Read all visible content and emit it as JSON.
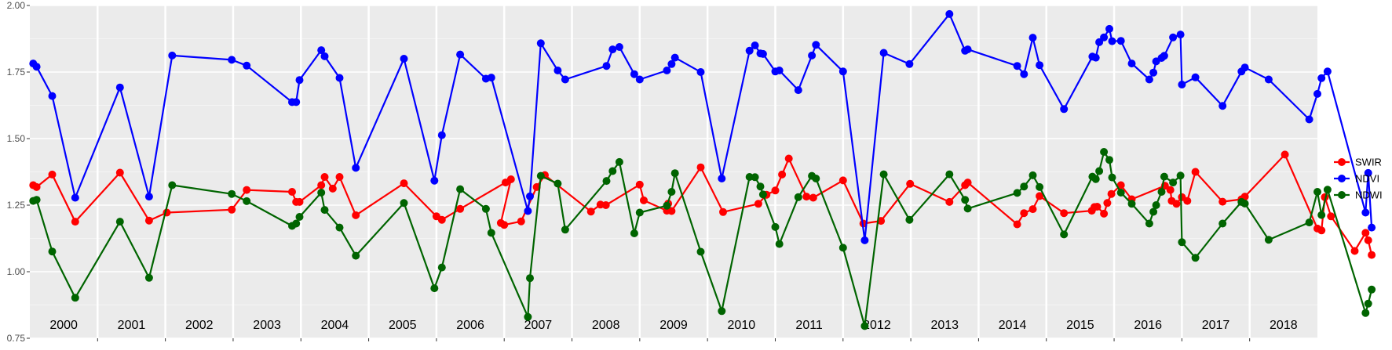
{
  "chart_data": {
    "type": "line",
    "title": "",
    "xlabel": "",
    "ylabel": "",
    "xlim": [
      2000.0,
      2019.0
    ],
    "ylim": [
      0.75,
      2.0
    ],
    "yticks": [
      "0.75",
      "1.00",
      "1.25",
      "1.50",
      "1.75",
      "2.00"
    ],
    "panels": [
      "2000",
      "2001",
      "2002",
      "2003",
      "2004",
      "2005",
      "2006",
      "2007",
      "2008",
      "2009",
      "2010",
      "2011",
      "2012",
      "2013",
      "2014",
      "2015",
      "2016",
      "2017",
      "2018"
    ],
    "grid": true,
    "legend_position": "right",
    "series": [
      {
        "name": "SWIR",
        "color": "#ff0000",
        "points": [
          [
            2000.05,
            1.325
          ],
          [
            2000.1,
            1.318
          ],
          [
            2000.33,
            1.365
          ],
          [
            2000.67,
            1.188
          ],
          [
            2001.33,
            1.372
          ],
          [
            2001.76,
            1.192
          ],
          [
            2002.02,
            1.222
          ],
          [
            2002.98,
            1.233
          ],
          [
            2003.2,
            1.307
          ],
          [
            2003.87,
            1.3
          ],
          [
            2003.93,
            1.262
          ],
          [
            2003.98,
            1.262
          ],
          [
            2004.3,
            1.325
          ],
          [
            2004.35,
            1.356
          ],
          [
            2004.47,
            1.312
          ],
          [
            2004.57,
            1.356
          ],
          [
            2004.81,
            1.212
          ],
          [
            2005.52,
            1.332
          ],
          [
            2006.0,
            1.208
          ],
          [
            2006.08,
            1.195
          ],
          [
            2006.35,
            1.236
          ],
          [
            2007.02,
            1.335
          ],
          [
            2007.1,
            1.347
          ],
          [
            2006.95,
            1.183
          ],
          [
            2007.0,
            1.176
          ],
          [
            2007.25,
            1.189
          ],
          [
            2007.48,
            1.318
          ],
          [
            2007.6,
            1.363
          ],
          [
            2008.28,
            1.226
          ],
          [
            2008.42,
            1.252
          ],
          [
            2008.5,
            1.25
          ],
          [
            2009.0,
            1.327
          ],
          [
            2009.06,
            1.268
          ],
          [
            2009.4,
            1.229
          ],
          [
            2009.42,
            1.256
          ],
          [
            2009.47,
            1.228
          ],
          [
            2009.9,
            1.392
          ],
          [
            2010.23,
            1.224
          ],
          [
            2010.75,
            1.255
          ],
          [
            2010.87,
            1.289
          ],
          [
            2011.0,
            1.305
          ],
          [
            2011.1,
            1.365
          ],
          [
            2011.2,
            1.425
          ],
          [
            2011.46,
            1.282
          ],
          [
            2011.56,
            1.278
          ],
          [
            2012.0,
            1.343
          ],
          [
            2012.3,
            1.181
          ],
          [
            2012.56,
            1.191
          ],
          [
            2012.99,
            1.33
          ],
          [
            2013.57,
            1.262
          ],
          [
            2013.8,
            1.325
          ],
          [
            2013.84,
            1.335
          ],
          [
            2014.57,
            1.178
          ],
          [
            2014.67,
            1.22
          ],
          [
            2014.8,
            1.235
          ],
          [
            2014.9,
            1.284
          ],
          [
            2015.26,
            1.22
          ],
          [
            2015.67,
            1.229
          ],
          [
            2015.71,
            1.243
          ],
          [
            2015.75,
            1.244
          ],
          [
            2015.85,
            1.218
          ],
          [
            2015.9,
            1.258
          ],
          [
            2015.96,
            1.292
          ],
          [
            2016.1,
            1.325
          ],
          [
            2016.26,
            1.272
          ],
          [
            2016.75,
            1.323
          ],
          [
            2016.83,
            1.307
          ],
          [
            2016.85,
            1.266
          ],
          [
            2016.92,
            1.255
          ],
          [
            2017.0,
            1.28
          ],
          [
            2017.08,
            1.266
          ],
          [
            2017.2,
            1.375
          ],
          [
            2017.6,
            1.263
          ],
          [
            2017.88,
            1.272
          ],
          [
            2017.93,
            1.282
          ],
          [
            2018.52,
            1.44
          ],
          [
            2019.0,
            1.162
          ],
          [
            2019.06,
            1.155
          ],
          [
            2019.11,
            1.28
          ],
          [
            2019.2,
            1.208
          ],
          [
            2019.55,
            1.078
          ],
          [
            2019.71,
            1.146
          ],
          [
            2019.75,
            1.118
          ],
          [
            2019.8,
            1.063
          ]
        ]
      },
      {
        "name": "NDVI",
        "color": "#0000ff",
        "points": [
          [
            2000.05,
            1.782
          ],
          [
            2000.1,
            1.77
          ],
          [
            2000.33,
            1.66
          ],
          [
            2000.67,
            1.278
          ],
          [
            2001.33,
            1.692
          ],
          [
            2001.76,
            1.282
          ],
          [
            2002.1,
            1.812
          ],
          [
            2002.98,
            1.796
          ],
          [
            2003.2,
            1.774
          ],
          [
            2003.87,
            1.637
          ],
          [
            2003.93,
            1.637
          ],
          [
            2003.98,
            1.72
          ],
          [
            2004.3,
            1.832
          ],
          [
            2004.35,
            1.809
          ],
          [
            2004.57,
            1.728
          ],
          [
            2004.81,
            1.39
          ],
          [
            2005.52,
            1.8
          ],
          [
            2005.97,
            1.342
          ],
          [
            2006.08,
            1.513
          ],
          [
            2006.35,
            1.816
          ],
          [
            2006.73,
            1.725
          ],
          [
            2006.81,
            1.729
          ],
          [
            2007.35,
            1.228
          ],
          [
            2007.38,
            1.283
          ],
          [
            2007.54,
            1.858
          ],
          [
            2007.79,
            1.756
          ],
          [
            2007.9,
            1.722
          ],
          [
            2008.51,
            1.773
          ],
          [
            2008.6,
            1.835
          ],
          [
            2008.7,
            1.844
          ],
          [
            2008.92,
            1.742
          ],
          [
            2009.0,
            1.722
          ],
          [
            2009.4,
            1.756
          ],
          [
            2009.47,
            1.78
          ],
          [
            2009.52,
            1.804
          ],
          [
            2009.9,
            1.75
          ],
          [
            2010.21,
            1.35
          ],
          [
            2010.62,
            1.83
          ],
          [
            2010.7,
            1.85
          ],
          [
            2010.78,
            1.82
          ],
          [
            2010.82,
            1.818
          ],
          [
            2011.0,
            1.752
          ],
          [
            2011.06,
            1.756
          ],
          [
            2011.34,
            1.682
          ],
          [
            2011.54,
            1.812
          ],
          [
            2011.6,
            1.852
          ],
          [
            2012.0,
            1.752
          ],
          [
            2012.32,
            1.118
          ],
          [
            2012.6,
            1.822
          ],
          [
            2012.98,
            1.78
          ],
          [
            2013.57,
            1.968
          ],
          [
            2013.8,
            1.83
          ],
          [
            2013.84,
            1.835
          ],
          [
            2014.57,
            1.773
          ],
          [
            2014.67,
            1.742
          ],
          [
            2014.8,
            1.879
          ],
          [
            2014.9,
            1.776
          ],
          [
            2015.26,
            1.611
          ],
          [
            2015.68,
            1.808
          ],
          [
            2015.73,
            1.804
          ],
          [
            2015.78,
            1.862
          ],
          [
            2015.85,
            1.88
          ],
          [
            2015.93,
            1.912
          ],
          [
            2015.97,
            1.866
          ],
          [
            2016.1,
            1.867
          ],
          [
            2016.26,
            1.782
          ],
          [
            2016.52,
            1.722
          ],
          [
            2016.58,
            1.748
          ],
          [
            2016.62,
            1.79
          ],
          [
            2016.7,
            1.803
          ],
          [
            2016.74,
            1.811
          ],
          [
            2016.87,
            1.88
          ],
          [
            2016.98,
            1.891
          ],
          [
            2017.0,
            1.703
          ],
          [
            2017.2,
            1.73
          ],
          [
            2017.6,
            1.623
          ],
          [
            2017.88,
            1.752
          ],
          [
            2017.93,
            1.767
          ],
          [
            2018.28,
            1.722
          ],
          [
            2018.88,
            1.572
          ],
          [
            2019.0,
            1.668
          ],
          [
            2019.06,
            1.727
          ],
          [
            2019.15,
            1.752
          ],
          [
            2019.71,
            1.222
          ],
          [
            2019.75,
            1.371
          ],
          [
            2019.8,
            1.166
          ]
        ]
      },
      {
        "name": "NDWI",
        "color": "#006400",
        "points": [
          [
            2000.05,
            1.266
          ],
          [
            2000.1,
            1.27
          ],
          [
            2000.33,
            1.076
          ],
          [
            2000.67,
            0.902
          ],
          [
            2001.33,
            1.188
          ],
          [
            2001.76,
            0.977
          ],
          [
            2002.1,
            1.325
          ],
          [
            2002.98,
            1.292
          ],
          [
            2003.2,
            1.265
          ],
          [
            2003.87,
            1.172
          ],
          [
            2003.93,
            1.181
          ],
          [
            2003.98,
            1.206
          ],
          [
            2004.3,
            1.297
          ],
          [
            2004.35,
            1.232
          ],
          [
            2004.57,
            1.166
          ],
          [
            2004.81,
            1.06
          ],
          [
            2005.52,
            1.258
          ],
          [
            2005.97,
            0.938
          ],
          [
            2006.08,
            1.016
          ],
          [
            2006.35,
            1.31
          ],
          [
            2006.73,
            1.236
          ],
          [
            2006.81,
            1.146
          ],
          [
            2007.35,
            0.83
          ],
          [
            2007.38,
            0.976
          ],
          [
            2007.54,
            1.36
          ],
          [
            2007.79,
            1.331
          ],
          [
            2007.9,
            1.158
          ],
          [
            2008.51,
            1.341
          ],
          [
            2008.6,
            1.378
          ],
          [
            2008.7,
            1.412
          ],
          [
            2008.92,
            1.144
          ],
          [
            2009.0,
            1.222
          ],
          [
            2009.4,
            1.248
          ],
          [
            2009.47,
            1.3
          ],
          [
            2009.52,
            1.37
          ],
          [
            2009.9,
            1.075
          ],
          [
            2010.21,
            0.852
          ],
          [
            2010.62,
            1.356
          ],
          [
            2010.7,
            1.355
          ],
          [
            2010.78,
            1.32
          ],
          [
            2010.82,
            1.29
          ],
          [
            2011.0,
            1.168
          ],
          [
            2011.06,
            1.104
          ],
          [
            2011.34,
            1.28
          ],
          [
            2011.54,
            1.36
          ],
          [
            2011.6,
            1.35
          ],
          [
            2012.0,
            1.09
          ],
          [
            2012.32,
            0.796
          ],
          [
            2012.6,
            1.366
          ],
          [
            2012.98,
            1.195
          ],
          [
            2013.57,
            1.366
          ],
          [
            2013.8,
            1.27
          ],
          [
            2013.84,
            1.237
          ],
          [
            2014.57,
            1.296
          ],
          [
            2014.67,
            1.32
          ],
          [
            2014.8,
            1.362
          ],
          [
            2014.9,
            1.318
          ],
          [
            2015.26,
            1.14
          ],
          [
            2015.68,
            1.357
          ],
          [
            2015.73,
            1.348
          ],
          [
            2015.78,
            1.378
          ],
          [
            2015.85,
            1.45
          ],
          [
            2015.93,
            1.42
          ],
          [
            2015.97,
            1.354
          ],
          [
            2016.1,
            1.297
          ],
          [
            2016.26,
            1.255
          ],
          [
            2016.52,
            1.181
          ],
          [
            2016.58,
            1.225
          ],
          [
            2016.62,
            1.25
          ],
          [
            2016.7,
            1.3
          ],
          [
            2016.74,
            1.357
          ],
          [
            2016.87,
            1.335
          ],
          [
            2016.98,
            1.361
          ],
          [
            2017.0,
            1.111
          ],
          [
            2017.2,
            1.052
          ],
          [
            2017.6,
            1.181
          ],
          [
            2017.88,
            1.262
          ],
          [
            2017.93,
            1.256
          ],
          [
            2018.28,
            1.12
          ],
          [
            2018.88,
            1.185
          ],
          [
            2019.0,
            1.3
          ],
          [
            2019.06,
            1.213
          ],
          [
            2019.15,
            1.308
          ],
          [
            2019.71,
            0.845
          ],
          [
            2019.75,
            0.88
          ],
          [
            2019.8,
            0.933
          ]
        ]
      }
    ]
  }
}
